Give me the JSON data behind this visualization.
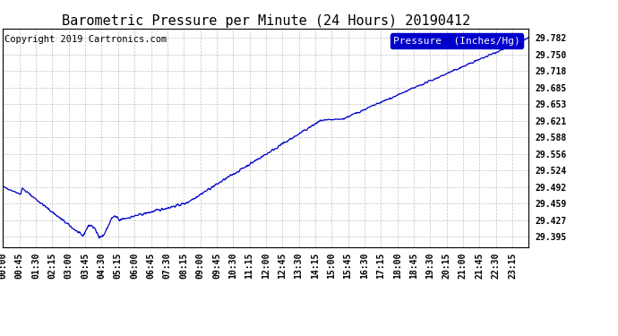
{
  "title": "Barometric Pressure per Minute (24 Hours) 20190412",
  "copyright_text": "Copyright 2019 Cartronics.com",
  "legend_label": "Pressure  (Inches/Hg)",
  "line_color": "#0000CC",
  "background_color": "#ffffff",
  "grid_color": "#aaaaaa",
  "y_tick_values": [
    29.395,
    29.427,
    29.459,
    29.492,
    29.524,
    29.556,
    29.588,
    29.621,
    29.653,
    29.685,
    29.718,
    29.75,
    29.782
  ],
  "ylim": [
    29.375,
    29.8
  ],
  "x_tick_labels": [
    "00:00",
    "00:45",
    "01:30",
    "02:15",
    "03:00",
    "03:45",
    "04:30",
    "05:15",
    "06:00",
    "06:45",
    "07:30",
    "08:15",
    "09:00",
    "09:45",
    "10:30",
    "11:15",
    "12:00",
    "12:45",
    "13:30",
    "14:15",
    "15:00",
    "15:45",
    "16:30",
    "17:15",
    "18:00",
    "18:45",
    "19:30",
    "20:15",
    "21:00",
    "21:45",
    "22:30",
    "23:15"
  ],
  "num_points": 1440,
  "title_fontsize": 11,
  "copyright_fontsize": 7.5,
  "tick_fontsize": 7,
  "legend_fontsize": 8
}
